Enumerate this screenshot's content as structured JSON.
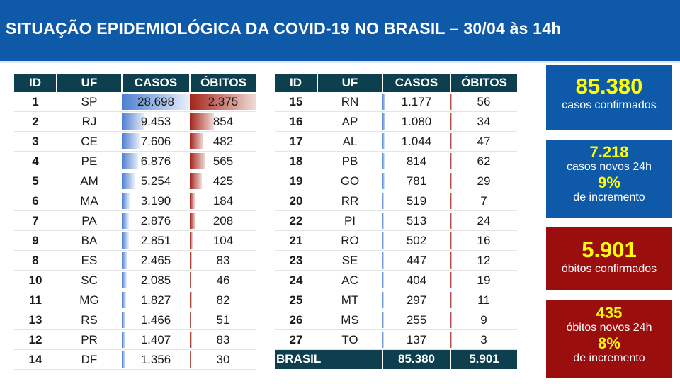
{
  "header": {
    "title": "SITUAÇÃO EPIDEMIOLÓGICA DA COVID-19 NO BRASIL – 30/04 às 14h"
  },
  "colors": {
    "header_bg": "#0f5aa8",
    "table_header_bg": "#0e3f4e",
    "cases_bar": "#4e7fd0",
    "deaths_bar": "#a3241a",
    "box_blue": "#0f5aa8",
    "box_red": "#9b0e0e",
    "highlight_text": "#ffff00"
  },
  "table_headers": [
    "ID",
    "UF",
    "CASOS",
    "ÓBITOS"
  ],
  "max_cases": 28698,
  "max_deaths": 2375,
  "left_rows": [
    {
      "id": "1",
      "uf": "SP",
      "casos": "28.698",
      "obitos": "2.375",
      "casos_n": 28698,
      "obitos_n": 2375
    },
    {
      "id": "2",
      "uf": "RJ",
      "casos": "9.453",
      "obitos": "854",
      "casos_n": 9453,
      "obitos_n": 854
    },
    {
      "id": "3",
      "uf": "CE",
      "casos": "7.606",
      "obitos": "482",
      "casos_n": 7606,
      "obitos_n": 482
    },
    {
      "id": "4",
      "uf": "PE",
      "casos": "6.876",
      "obitos": "565",
      "casos_n": 6876,
      "obitos_n": 565
    },
    {
      "id": "5",
      "uf": "AM",
      "casos": "5.254",
      "obitos": "425",
      "casos_n": 5254,
      "obitos_n": 425
    },
    {
      "id": "6",
      "uf": "MA",
      "casos": "3.190",
      "obitos": "184",
      "casos_n": 3190,
      "obitos_n": 184
    },
    {
      "id": "7",
      "uf": "PA",
      "casos": "2.876",
      "obitos": "208",
      "casos_n": 2876,
      "obitos_n": 208
    },
    {
      "id": "9",
      "uf": "BA",
      "casos": "2.851",
      "obitos": "104",
      "casos_n": 2851,
      "obitos_n": 104
    },
    {
      "id": "8",
      "uf": "ES",
      "casos": "2.465",
      "obitos": "83",
      "casos_n": 2465,
      "obitos_n": 83
    },
    {
      "id": "10",
      "uf": "SC",
      "casos": "2.085",
      "obitos": "46",
      "casos_n": 2085,
      "obitos_n": 46
    },
    {
      "id": "11",
      "uf": "MG",
      "casos": "1.827",
      "obitos": "82",
      "casos_n": 1827,
      "obitos_n": 82
    },
    {
      "id": "13",
      "uf": "RS",
      "casos": "1.466",
      "obitos": "51",
      "casos_n": 1466,
      "obitos_n": 51
    },
    {
      "id": "12",
      "uf": "PR",
      "casos": "1.407",
      "obitos": "83",
      "casos_n": 1407,
      "obitos_n": 83
    },
    {
      "id": "14",
      "uf": "DF",
      "casos": "1.356",
      "obitos": "30",
      "casos_n": 1356,
      "obitos_n": 30
    }
  ],
  "right_rows": [
    {
      "id": "15",
      "uf": "RN",
      "casos": "1.177",
      "obitos": "56",
      "casos_n": 1177,
      "obitos_n": 56
    },
    {
      "id": "16",
      "uf": "AP",
      "casos": "1.080",
      "obitos": "34",
      "casos_n": 1080,
      "obitos_n": 34
    },
    {
      "id": "17",
      "uf": "AL",
      "casos": "1.044",
      "obitos": "47",
      "casos_n": 1044,
      "obitos_n": 47
    },
    {
      "id": "18",
      "uf": "PB",
      "casos": "814",
      "obitos": "62",
      "casos_n": 814,
      "obitos_n": 62
    },
    {
      "id": "19",
      "uf": "GO",
      "casos": "781",
      "obitos": "29",
      "casos_n": 781,
      "obitos_n": 29
    },
    {
      "id": "20",
      "uf": "RR",
      "casos": "519",
      "obitos": "7",
      "casos_n": 519,
      "obitos_n": 7
    },
    {
      "id": "22",
      "uf": "PI",
      "casos": "513",
      "obitos": "24",
      "casos_n": 513,
      "obitos_n": 24
    },
    {
      "id": "21",
      "uf": "RO",
      "casos": "502",
      "obitos": "16",
      "casos_n": 502,
      "obitos_n": 16
    },
    {
      "id": "23",
      "uf": "SE",
      "casos": "447",
      "obitos": "12",
      "casos_n": 447,
      "obitos_n": 12
    },
    {
      "id": "24",
      "uf": "AC",
      "casos": "404",
      "obitos": "19",
      "casos_n": 404,
      "obitos_n": 19
    },
    {
      "id": "25",
      "uf": "MT",
      "casos": "297",
      "obitos": "11",
      "casos_n": 297,
      "obitos_n": 11
    },
    {
      "id": "26",
      "uf": "MS",
      "casos": "255",
      "obitos": "9",
      "casos_n": 255,
      "obitos_n": 9
    },
    {
      "id": "27",
      "uf": "TO",
      "casos": "137",
      "obitos": "3",
      "casos_n": 137,
      "obitos_n": 3
    }
  ],
  "total_row": {
    "label": "BRASIL",
    "casos": "85.380",
    "obitos": "5.901"
  },
  "boxes": {
    "cases": {
      "value": "85.380",
      "label": "casos confirmados"
    },
    "new_cases": {
      "value": "7.218",
      "label": "casos novos 24h",
      "pct": "9%",
      "pct_label": "de incremento"
    },
    "deaths": {
      "value": "5.901",
      "label": "óbitos confirmados"
    },
    "new_deaths": {
      "value": "435",
      "label": "óbitos novos 24h",
      "pct": "8%",
      "pct_label": "de incremento"
    }
  }
}
